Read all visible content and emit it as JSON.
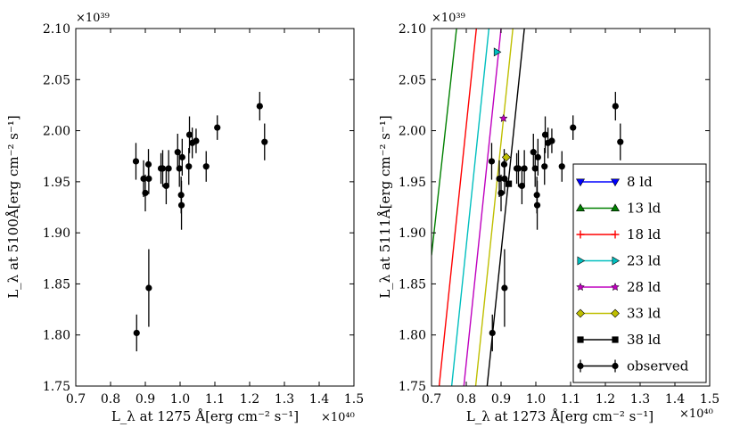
{
  "chart_data": [
    {
      "type": "scatter",
      "id": "left",
      "xlabel": "L_λ at 1275 Å[erg cm⁻² s⁻¹]",
      "ylabel": "L_λ at 5100Å[erg cm⁻² s⁻¹]",
      "x_multiplier": "×10⁴⁰",
      "y_multiplier": "×10³⁹",
      "xlim": [
        0.7,
        1.5
      ],
      "ylim": [
        1.75,
        2.1
      ],
      "xticks": [
        "0.7",
        "0.8",
        "0.9",
        "1.0",
        "1.1",
        "1.2",
        "1.3",
        "1.4",
        "1.5"
      ],
      "yticks": [
        "1.75",
        "1.80",
        "1.85",
        "1.90",
        "1.95",
        "2.00",
        "2.05",
        "2.10"
      ],
      "legend": null,
      "series": [
        {
          "name": "observed",
          "color": "#000000",
          "points": [
            {
              "x": 0.873,
              "y": 1.97,
              "yerr": 0.018
            },
            {
              "x": 0.875,
              "y": 1.802,
              "yerr": 0.018
            },
            {
              "x": 0.895,
              "y": 1.953,
              "yerr": 0.018
            },
            {
              "x": 0.9,
              "y": 1.939,
              "yerr": 0.018
            },
            {
              "x": 0.909,
              "y": 1.967,
              "yerr": 0.015
            },
            {
              "x": 0.91,
              "y": 1.953,
              "yerr": 0.015
            },
            {
              "x": 0.91,
              "y": 1.846,
              "yerr": 0.038
            },
            {
              "x": 0.945,
              "y": 1.963,
              "yerr": 0.015
            },
            {
              "x": 0.95,
              "y": 1.963,
              "yerr": 0.018
            },
            {
              "x": 0.96,
              "y": 1.946,
              "yerr": 0.018
            },
            {
              "x": 0.967,
              "y": 1.963,
              "yerr": 0.018
            },
            {
              "x": 0.993,
              "y": 1.979,
              "yerr": 0.018
            },
            {
              "x": 0.998,
              "y": 1.963,
              "yerr": 0.018
            },
            {
              "x": 1.003,
              "y": 1.937,
              "yerr": 0.018
            },
            {
              "x": 1.004,
              "y": 1.927,
              "yerr": 0.024
            },
            {
              "x": 1.006,
              "y": 1.974,
              "yerr": 0.018
            },
            {
              "x": 1.025,
              "y": 1.965,
              "yerr": 0.018
            },
            {
              "x": 1.027,
              "y": 1.996,
              "yerr": 0.018
            },
            {
              "x": 1.035,
              "y": 1.988,
              "yerr": 0.015
            },
            {
              "x": 1.046,
              "y": 1.99,
              "yerr": 0.012
            },
            {
              "x": 1.075,
              "y": 1.965,
              "yerr": 0.015
            },
            {
              "x": 1.107,
              "y": 2.003,
              "yerr": 0.012
            },
            {
              "x": 1.229,
              "y": 2.024,
              "yerr": 0.014
            },
            {
              "x": 1.243,
              "y": 1.989,
              "yerr": 0.018
            }
          ]
        }
      ]
    },
    {
      "type": "scatter",
      "id": "right",
      "xlabel": "L_λ at 1273 Å[erg cm⁻² s⁻¹]",
      "ylabel": "L_λ at 5111Å[erg cm⁻² s⁻¹]",
      "x_multiplier": "×10⁴⁰",
      "y_multiplier": "×10³⁹",
      "xlim": [
        0.7,
        1.5
      ],
      "ylim": [
        1.75,
        2.1
      ],
      "xticks": [
        "0.7",
        "0.8",
        "0.9",
        "1.0",
        "1.1",
        "1.2",
        "1.3",
        "1.4",
        "1.5"
      ],
      "yticks": [
        "1.75",
        "1.80",
        "1.85",
        "1.90",
        "1.95",
        "2.00",
        "2.05",
        "2.10"
      ],
      "legend": "lower-right",
      "series": [
        {
          "name": "8 ld",
          "color": "#0000ff",
          "marker": "triangle-down",
          "line": null,
          "point": null
        },
        {
          "name": "13 ld",
          "color": "#008000",
          "marker": "triangle-up",
          "line": [
            [
              0.7,
              1.878
            ],
            [
              0.772,
              2.1
            ]
          ],
          "point": null
        },
        {
          "name": "18 ld",
          "color": "#ff0000",
          "marker": "plus",
          "line": [
            [
              0.722,
              1.75
            ],
            [
              0.829,
              2.1
            ]
          ],
          "point": null
        },
        {
          "name": "23 ld",
          "color": "#00bfbf",
          "marker": "triangle-right",
          "line": [
            [
              0.758,
              1.75
            ],
            [
              0.865,
              2.1
            ]
          ],
          "point": {
            "x": 0.888,
            "y": 2.077
          }
        },
        {
          "name": "28 ld",
          "color": "#bf00bf",
          "marker": "star",
          "line": [
            [
              0.793,
              1.75
            ],
            [
              0.9,
              2.1
            ]
          ],
          "point": {
            "x": 0.907,
            "y": 2.012
          }
        },
        {
          "name": "33 ld",
          "color": "#bfbf00",
          "marker": "diamond",
          "line": [
            [
              0.827,
              1.75
            ],
            [
              0.934,
              2.1
            ]
          ],
          "point": {
            "x": 0.915,
            "y": 1.974
          }
        },
        {
          "name": "38 ld",
          "color": "#000000",
          "marker": "square",
          "line": [
            [
              0.86,
              1.75
            ],
            [
              0.967,
              2.1
            ]
          ],
          "point": {
            "x": 0.922,
            "y": 1.948
          }
        },
        {
          "name": "observed",
          "color": "#000000",
          "marker": "circle-errorbar",
          "line": null,
          "point": null
        }
      ]
    }
  ]
}
